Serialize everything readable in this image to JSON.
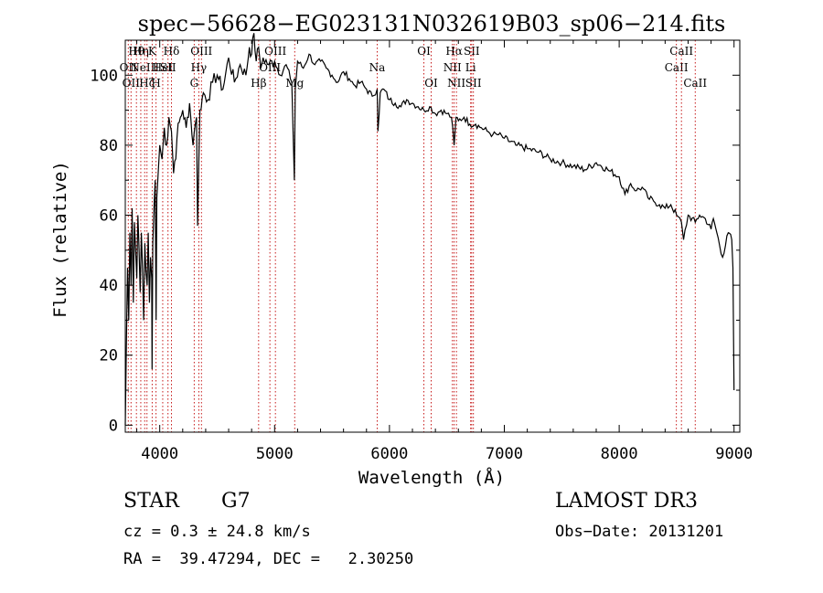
{
  "chart_data": {
    "type": "line",
    "title": "spec−56628−EG023131N032619B03_sp06−214.fits",
    "xlabel": "Wavelength (Å)",
    "ylabel": "Flux (relative)",
    "xlim": [
      3700,
      9050
    ],
    "ylim": [
      -2,
      110
    ],
    "xticks": [
      4000,
      5000,
      6000,
      7000,
      8000,
      9000
    ],
    "yticks": [
      0,
      20,
      40,
      60,
      80,
      100
    ],
    "grid": false,
    "series": [
      {
        "name": "flux",
        "x": [
          3700,
          3710,
          3720,
          3730,
          3740,
          3750,
          3760,
          3770,
          3780,
          3790,
          3800,
          3810,
          3820,
          3830,
          3840,
          3850,
          3860,
          3870,
          3880,
          3890,
          3900,
          3910,
          3920,
          3930,
          3933,
          3940,
          3950,
          3960,
          3968,
          3975,
          3990,
          4000,
          4020,
          4040,
          4060,
          4080,
          4102,
          4120,
          4150,
          4180,
          4200,
          4230,
          4260,
          4290,
          4310,
          4320,
          4330,
          4340,
          4350,
          4380,
          4420,
          4460,
          4500,
          4550,
          4600,
          4650,
          4700,
          4750,
          4780,
          4800,
          4820,
          4840,
          4861,
          4880,
          4900,
          4950,
          5000,
          5050,
          5100,
          5150,
          5172,
          5180,
          5200,
          5250,
          5300,
          5350,
          5400,
          5450,
          5500,
          5550,
          5600,
          5650,
          5700,
          5750,
          5800,
          5850,
          5893,
          5900,
          5920,
          5950,
          6000,
          6050,
          6100,
          6150,
          6200,
          6250,
          6300,
          6350,
          6400,
          6450,
          6500,
          6540,
          6563,
          6580,
          6600,
          6650,
          6700,
          6750,
          6800,
          6850,
          6900,
          6950,
          7000,
          7100,
          7200,
          7300,
          7400,
          7500,
          7600,
          7700,
          7800,
          7900,
          8000,
          8050,
          8100,
          8150,
          8200,
          8250,
          8300,
          8350,
          8400,
          8450,
          8500,
          8542,
          8560,
          8600,
          8662,
          8700,
          8750,
          8800,
          8820,
          8850,
          8900,
          8950,
          8980,
          8990,
          9000
        ],
        "values": [
          0,
          25,
          45,
          30,
          55,
          40,
          62,
          35,
          58,
          50,
          42,
          60,
          50,
          38,
          55,
          45,
          30,
          52,
          44,
          40,
          55,
          35,
          48,
          42,
          16,
          52,
          62,
          70,
          30,
          65,
          74,
          80,
          76,
          85,
          80,
          88,
          84,
          72,
          82,
          88,
          90,
          85,
          92,
          80,
          86,
          88,
          57,
          75,
          90,
          95,
          93,
          98,
          100,
          96,
          105,
          98,
          103,
          100,
          108,
          106,
          112,
          104,
          108,
          102,
          105,
          103,
          104,
          100,
          103,
          98,
          70,
          96,
          104,
          102,
          106,
          103,
          104,
          102,
          100,
          98,
          101,
          99,
          97,
          98,
          96,
          94,
          96,
          84,
          95,
          96,
          93,
          92,
          91,
          93,
          92,
          91,
          90,
          91,
          89,
          90,
          89,
          88,
          80,
          88,
          87,
          88,
          86,
          86,
          85,
          84,
          83,
          83,
          82,
          80,
          79,
          78,
          76,
          75,
          74,
          73,
          75,
          73,
          71,
          66,
          69,
          67,
          68,
          65,
          64,
          63,
          62,
          63,
          60,
          58,
          53,
          60,
          58,
          60,
          59,
          56,
          59,
          55,
          48,
          55,
          53,
          45,
          10
        ]
      }
    ],
    "lines": [
      {
        "wl": 3726,
        "row": 1,
        "label": "OII"
      },
      {
        "wl": 3750,
        "row": 2,
        "label": "OII"
      },
      {
        "wl": 3797,
        "row": 0,
        "label": "Hθ"
      },
      {
        "wl": 3835,
        "row": 0,
        "label": "Hη"
      },
      {
        "wl": 3869,
        "row": 1,
        "label": "NeIII"
      },
      {
        "wl": 3889,
        "row": 2,
        "label": "Hζ"
      },
      {
        "wl": 3934,
        "row": 0,
        "label": "K"
      },
      {
        "wl": 3968,
        "row": 2,
        "label": "H"
      },
      {
        "wl": 4026,
        "row": 1,
        "label": "HeI"
      },
      {
        "wl": 4072,
        "row": 1,
        "label": "SII"
      },
      {
        "wl": 4102,
        "row": 0,
        "label": "Hδ"
      },
      {
        "wl": 4300,
        "row": 2,
        "label": "G"
      },
      {
        "wl": 4340,
        "row": 1,
        "label": "Hγ"
      },
      {
        "wl": 4363,
        "row": 0,
        "label": "OIII"
      },
      {
        "wl": 4861,
        "row": 2,
        "label": "Hβ"
      },
      {
        "wl": 4959,
        "row": 1,
        "label": "OIII"
      },
      {
        "wl": 5007,
        "row": 0,
        "label": "OIII"
      },
      {
        "wl": 5175,
        "row": 2,
        "label": "Mg"
      },
      {
        "wl": 5893,
        "row": 1,
        "label": "Na"
      },
      {
        "wl": 6300,
        "row": 0,
        "label": "OI"
      },
      {
        "wl": 6363,
        "row": 2,
        "label": "OI"
      },
      {
        "wl": 6548,
        "row": 1,
        "label": "NII"
      },
      {
        "wl": 6563,
        "row": 0,
        "label": "Hα"
      },
      {
        "wl": 6583,
        "row": 2,
        "label": "NII"
      },
      {
        "wl": 6707,
        "row": 1,
        "label": "Li"
      },
      {
        "wl": 6716,
        "row": 0,
        "label": "SII"
      },
      {
        "wl": 6731,
        "row": 2,
        "label": "SII"
      },
      {
        "wl": 8498,
        "row": 1,
        "label": "CaII"
      },
      {
        "wl": 8542,
        "row": 0,
        "label": "CaII"
      },
      {
        "wl": 8662,
        "row": 2,
        "label": "CaII"
      }
    ]
  },
  "info": {
    "object_class": "STAR",
    "subclass": "G7",
    "survey": "LAMOST DR3",
    "cz": "cz = 0.3 ± 24.8 km/s",
    "obs_date": "Obs−Date: 20131201",
    "radec": "RA =  39.47294, DEC =   2.30250"
  },
  "colors": {
    "axis": "#000000",
    "spectrum": "#000000",
    "line_marker": "#c00000"
  }
}
